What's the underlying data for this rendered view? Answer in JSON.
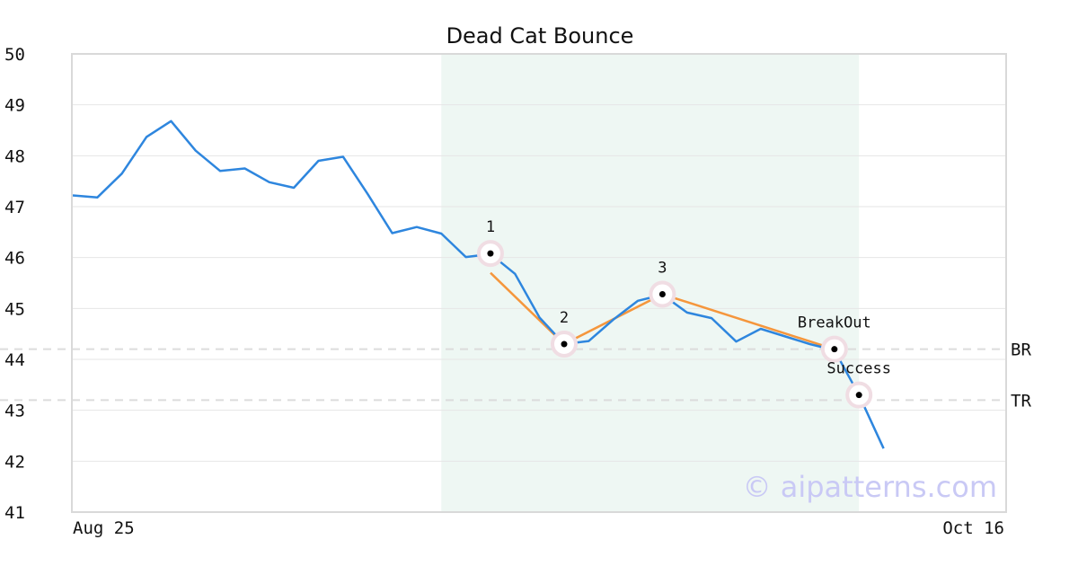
{
  "chart_data": {
    "type": "line",
    "title": "Dead Cat Bounce",
    "xlabel": "",
    "ylabel": "",
    "ylim": [
      41,
      50
    ],
    "yticks": [
      41,
      42,
      43,
      44,
      45,
      46,
      47,
      48,
      49,
      50
    ],
    "xtick_labels": [
      "Aug 25",
      "Oct 16"
    ],
    "grid": true,
    "series": [
      {
        "color": "#2e86de",
        "values": [
          47.22,
          47.18,
          47.65,
          48.37,
          48.68,
          48.1,
          47.7,
          47.75,
          47.48,
          47.37,
          47.9,
          47.98,
          47.25,
          46.48,
          46.6,
          46.47,
          46.01,
          46.07,
          45.68,
          44.82,
          44.3,
          44.36,
          44.78,
          45.15,
          45.27,
          44.92,
          44.81,
          44.35,
          44.6,
          44.45,
          44.3,
          44.18,
          43.3,
          42.25
        ]
      }
    ],
    "highlight_range": {
      "start_index": 15,
      "end_index": 32,
      "color": "#eef7f3"
    },
    "pattern_line": {
      "color": "#f5963c",
      "points": [
        [
          17,
          45.7
        ],
        [
          20,
          44.3
        ],
        [
          24,
          45.28
        ],
        [
          31,
          44.2
        ]
      ]
    },
    "markers": [
      {
        "index": 17,
        "value": 46.08,
        "label": "1",
        "label_pos": "above"
      },
      {
        "index": 20,
        "value": 44.3,
        "label": "2",
        "label_pos": "above"
      },
      {
        "index": 24,
        "value": 45.28,
        "label": "3",
        "label_pos": "above"
      },
      {
        "index": 31,
        "value": 44.2,
        "label": "BreakOut",
        "label_pos": "above"
      },
      {
        "index": 32,
        "value": 43.3,
        "label": "Success",
        "label_pos": "above"
      }
    ],
    "reference_lines": [
      {
        "value": 44.2,
        "label": "BR"
      },
      {
        "value": 43.2,
        "label": "TR"
      }
    ],
    "watermark": "© aipatterns.com"
  }
}
